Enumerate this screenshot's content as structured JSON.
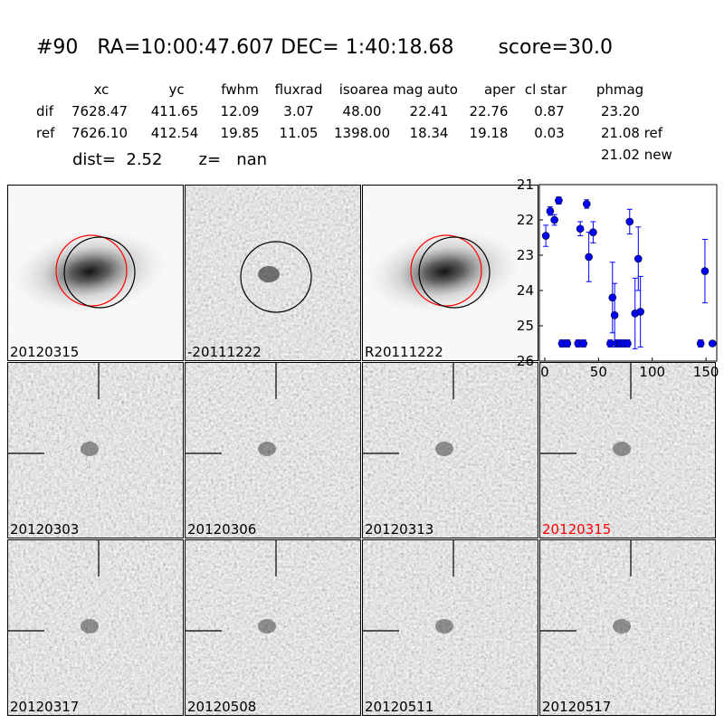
{
  "header": {
    "title": "#90   RA=10:00:47.607 DEC= 1:40:18.68       score=30.0"
  },
  "table": {
    "columns": [
      "xc",
      "yc",
      "fwhm",
      "fluxrad",
      "isoarea",
      "mag auto",
      "aper",
      "cl star",
      "phmag"
    ],
    "rows": [
      {
        "label": "dif",
        "values": [
          "7628.47",
          "411.65",
          "12.09",
          "3.07",
          "48.00",
          "22.41",
          "22.76",
          "0.87",
          "23.20"
        ]
      },
      {
        "label": "ref",
        "values": [
          "7626.10",
          "412.54",
          "19.85",
          "11.05",
          "1398.00",
          "18.34",
          "19.18",
          "0.03",
          "21.08 ref"
        ]
      }
    ],
    "extra": "21.02 new"
  },
  "info": {
    "dist": "dist=  2.52",
    "z": "z=   nan"
  },
  "panels": [
    {
      "label": "20120315",
      "kind": "galaxy",
      "label_color": "#000000"
    },
    {
      "label": "-20111222",
      "kind": "diff",
      "label_color": "#000000"
    },
    {
      "label": "R20111222",
      "kind": "galaxy",
      "label_color": "#000000"
    },
    {
      "label": "20120303",
      "kind": "noise",
      "label_color": "#000000"
    },
    {
      "label": "20120306",
      "kind": "noise",
      "label_color": "#000000"
    },
    {
      "label": "20120313",
      "kind": "noise",
      "label_color": "#000000"
    },
    {
      "label": "20120315",
      "kind": "noise",
      "label_color": "#ff0000"
    },
    {
      "label": "20120317",
      "kind": "noise",
      "label_color": "#000000"
    },
    {
      "label": "20120508",
      "kind": "noise",
      "label_color": "#000000"
    },
    {
      "label": "20120511",
      "kind": "noise",
      "label_color": "#000000"
    },
    {
      "label": "20120517",
      "kind": "noise",
      "label_color": "#000000"
    }
  ],
  "colors": {
    "marker": "#0000ff",
    "circle_red": "#ff0000",
    "circle_black": "#000000"
  },
  "chart_data": {
    "type": "scatter",
    "xlim": [
      -5,
      160
    ],
    "ylim": [
      26,
      21
    ],
    "inverted_y": true,
    "x_ticks": [
      0,
      50,
      100,
      150
    ],
    "y_ticks": [
      21,
      22,
      23,
      24,
      25,
      26
    ],
    "grid": false,
    "series": [
      {
        "points": [
          {
            "x": 1,
            "y": 22.45,
            "err": 0.3
          },
          {
            "x": 5,
            "y": 21.75,
            "err": 0.12
          },
          {
            "x": 9,
            "y": 22.0,
            "err": 0.15
          },
          {
            "x": 13,
            "y": 21.45,
            "err": 0.1
          },
          {
            "x": 16,
            "y": 25.5,
            "err": 0.1
          },
          {
            "x": 21,
            "y": 25.5,
            "err": 0.1
          },
          {
            "x": 31,
            "y": 25.5,
            "err": 0.1
          },
          {
            "x": 33,
            "y": 22.25,
            "err": 0.2
          },
          {
            "x": 36,
            "y": 25.5,
            "err": 0.1
          },
          {
            "x": 39,
            "y": 21.55,
            "err": 0.12
          },
          {
            "x": 41,
            "y": 23.05,
            "err": 0.7
          },
          {
            "x": 45,
            "y": 22.35,
            "err": 0.3
          },
          {
            "x": 61,
            "y": 25.5,
            "err": 0.1
          },
          {
            "x": 63,
            "y": 24.2,
            "err": 1.0
          },
          {
            "x": 65,
            "y": 24.7,
            "err": 0.9
          },
          {
            "x": 67,
            "y": 25.5,
            "err": 0.1
          },
          {
            "x": 70,
            "y": 25.5,
            "err": 0.1
          },
          {
            "x": 73,
            "y": 25.5,
            "err": 0.1
          },
          {
            "x": 77,
            "y": 25.5,
            "err": 0.1
          },
          {
            "x": 79,
            "y": 22.05,
            "err": 0.35
          },
          {
            "x": 84,
            "y": 24.65,
            "err": 1.0
          },
          {
            "x": 87,
            "y": 23.1,
            "err": 0.9
          },
          {
            "x": 89,
            "y": 24.6,
            "err": 1.0
          },
          {
            "x": 145,
            "y": 25.5,
            "err": 0.1
          },
          {
            "x": 149,
            "y": 23.45,
            "err": 0.9
          },
          {
            "x": 156,
            "y": 25.5,
            "err": 0.05
          }
        ]
      }
    ]
  }
}
